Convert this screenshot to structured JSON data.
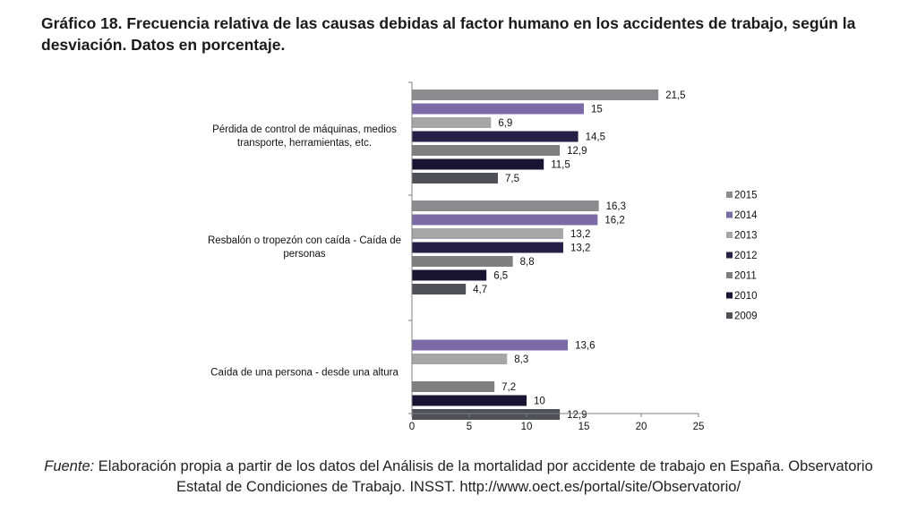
{
  "title": "Gráfico 18. Frecuencia relativa de las causas debidas al factor humano en los accidentes de trabajo, según la desviación. Datos en porcentaje.",
  "source": {
    "label": "Fuente:",
    "text": " Elaboración propia a partir de los datos del Análisis de la mortalidad por accidente de trabajo en España. Observatorio Estatal de Condiciones de Trabajo. INSST. http://www.oect.es/portal/site/Observatorio/"
  },
  "chart_data": {
    "type": "bar",
    "orientation": "horizontal",
    "categories": [
      [
        "Pérdida de control de máquinas, medios",
        "transporte, herramientas, etc."
      ],
      [
        "Resbalón o tropezón con caída - Caída de",
        "personas"
      ],
      [
        "Caída de una persona - desde una altura"
      ]
    ],
    "series": [
      {
        "name": "2015",
        "color": "#8c8c8f",
        "values": [
          21.5,
          16.3,
          null
        ]
      },
      {
        "name": "2014",
        "color": "#7b6aa6",
        "values": [
          15,
          16.2,
          13.6
        ]
      },
      {
        "name": "2013",
        "color": "#a6a6a6",
        "values": [
          6.9,
          13.2,
          8.3
        ]
      },
      {
        "name": "2012",
        "color": "#262046",
        "values": [
          14.5,
          13.2,
          null
        ]
      },
      {
        "name": "2011",
        "color": "#7f7f7f",
        "values": [
          12.9,
          8.8,
          7.2
        ]
      },
      {
        "name": "2010",
        "color": "#1a1433",
        "values": [
          11.5,
          6.5,
          10
        ]
      },
      {
        "name": "2009",
        "color": "#505058",
        "values": [
          7.5,
          4.7,
          12.9
        ]
      }
    ],
    "value_labels": [
      [
        "21,5",
        "15",
        "6,9",
        "14,5",
        "12,9",
        "11,5",
        "7,5"
      ],
      [
        "16,3",
        "16,2",
        "13,2",
        "13,2",
        "8,8",
        "6,5",
        "4,7"
      ],
      [
        "",
        "13,6",
        "8,3",
        "",
        "7,2",
        "10",
        "12,9"
      ]
    ],
    "xlim": [
      0,
      25
    ],
    "xticks": [
      "0",
      "5",
      "10",
      "15",
      "20",
      "25"
    ],
    "xlabel": "",
    "ylabel": "",
    "grid": false,
    "legend_position": "right"
  }
}
